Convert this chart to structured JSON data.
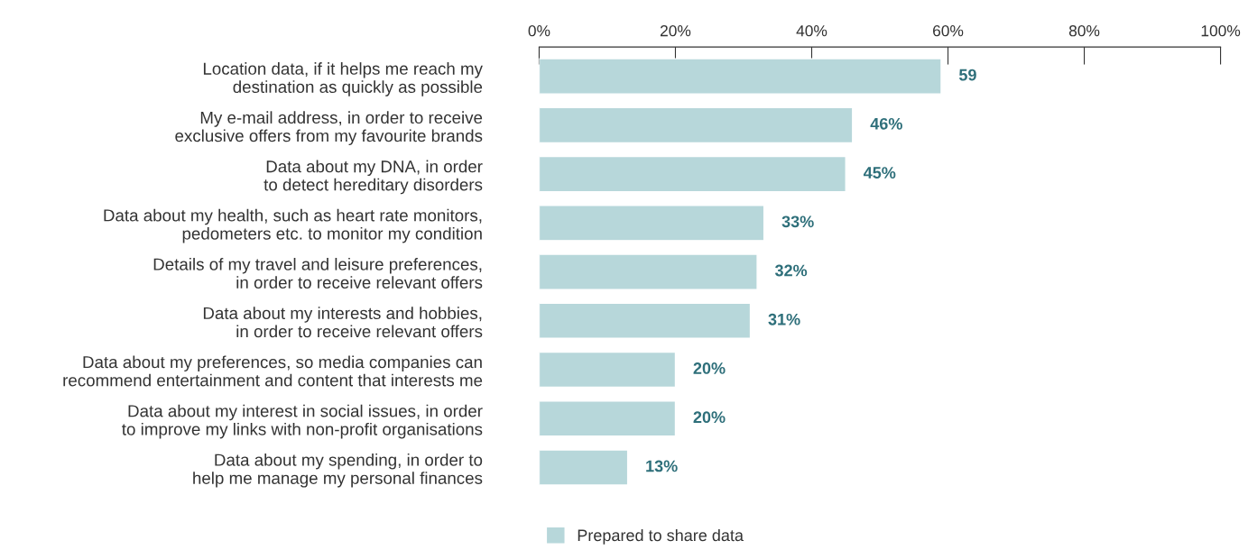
{
  "chart_data": {
    "type": "bar",
    "orientation": "horizontal",
    "categories": [
      "Location data, if it helps me reach my\ndestination as quickly as possible",
      "My e-mail address, in order to receive\nexclusive offers from my favourite brands",
      "Data about my DNA, in order\nto detect hereditary disorders",
      "Data about my health, such as heart rate monitors,\npedometers etc. to monitor my condition",
      "Details of my travel and leisure preferences,\nin order to receive relevant offers",
      "Data about my interests and hobbies,\nin order to receive relevant offers",
      "Data about my preferences, so media companies can\nrecommend entertainment and content that interests me",
      "Data about my interest in social issues, in order\nto improve my links with non-profit organisations",
      "Data about my spending, in order to\nhelp me manage my personal finances"
    ],
    "series": [
      {
        "name": "Prepared to share data",
        "color": "#b7d7da",
        "values": [
          59,
          46,
          45,
          33,
          32,
          31,
          20,
          20,
          13
        ],
        "value_labels": [
          "59",
          "46%",
          "45%",
          "33%",
          "32%",
          "31%",
          "20%",
          "20%",
          "13%"
        ]
      }
    ],
    "xlim": [
      0,
      100
    ],
    "xticks": [
      {
        "value": 0,
        "label": "0%"
      },
      {
        "value": 20,
        "label": "20%"
      },
      {
        "value": 40,
        "label": "40%"
      },
      {
        "value": 60,
        "label": "60%"
      },
      {
        "value": 80,
        "label": "80%"
      },
      {
        "value": 100,
        "label": "100%"
      }
    ],
    "grid": false,
    "legend": "bottom"
  }
}
